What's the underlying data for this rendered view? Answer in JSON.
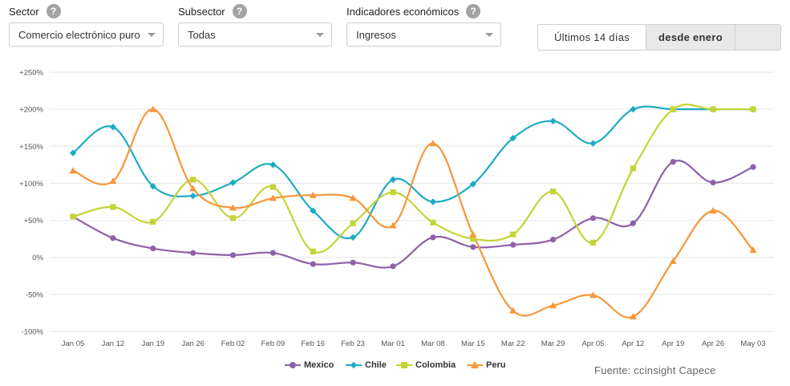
{
  "filters": {
    "sector": {
      "label": "Sector",
      "value": "Comercio electrónico puro"
    },
    "subsector": {
      "label": "Subsector",
      "value": "Todas"
    },
    "indicator": {
      "label": "Indicadores económicos",
      "value": "Ingresos"
    },
    "help_glyph": "?"
  },
  "range_toggle": {
    "option1": "Últimos 14 días",
    "option2": "desde enero",
    "option3": "",
    "selected": "desde enero"
  },
  "source": "Fuente: ccinsight Capece",
  "colors": {
    "Mexico": "#8c62a8",
    "Chile": "#1eacc4",
    "Colombia": "#c4d438",
    "Peru": "#f7963a",
    "grid": "#e6e6e6",
    "axis_text": "#555555"
  },
  "chart_data": {
    "type": "line",
    "x": [
      "Jan 05",
      "Jan 12",
      "Jan 19",
      "Jan 26",
      "Feb 02",
      "Feb 09",
      "Feb 16",
      "Feb 23",
      "Mar 01",
      "Mar 08",
      "Mar 15",
      "Mar 22",
      "Mar 29",
      "Apr 05",
      "Apr 12",
      "Apr 19",
      "Apr 26",
      "May 03"
    ],
    "yticks": [
      "+250%",
      "+200%",
      "+150%",
      "+100%",
      "+50%",
      "0%",
      "-50%",
      "-100%"
    ],
    "ylim": [
      -100,
      250
    ],
    "grid": true,
    "legend_position": "bottom",
    "series": [
      {
        "name": "Mexico",
        "marker": "circle",
        "values": [
          55,
          26,
          12,
          6,
          3,
          6,
          -9,
          -7,
          -12,
          27,
          14,
          17,
          24,
          53,
          46,
          129,
          101,
          122
        ]
      },
      {
        "name": "Chile",
        "marker": "diamond",
        "values": [
          141,
          176,
          96,
          83,
          101,
          125,
          63,
          27,
          105,
          75,
          99,
          161,
          184,
          154,
          200,
          200,
          200,
          200
        ]
      },
      {
        "name": "Colombia",
        "marker": "square",
        "values": [
          55,
          68,
          48,
          105,
          53,
          95,
          8,
          46,
          88,
          47,
          25,
          31,
          89,
          20,
          120,
          200,
          200,
          200
        ]
      },
      {
        "name": "Peru",
        "marker": "triangle",
        "values": [
          117,
          103,
          200,
          93,
          67,
          80,
          84,
          80,
          43,
          154,
          31,
          -72,
          -65,
          -51,
          -80,
          -5,
          63,
          10
        ]
      }
    ]
  }
}
